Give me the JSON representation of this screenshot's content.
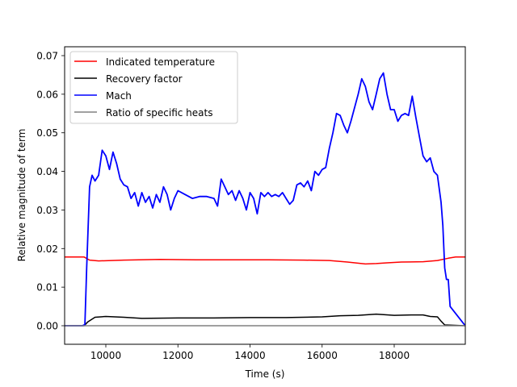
{
  "chart_data": {
    "type": "line",
    "title": "",
    "xlabel": "Time (s)",
    "ylabel": "Relative magnitude of term",
    "xlim": [
      8860,
      19970
    ],
    "ylim": [
      -0.0048,
      0.0723
    ],
    "grid": false,
    "legend_position": "upper left",
    "xticks": [
      10000,
      12000,
      14000,
      16000,
      18000
    ],
    "xtick_labels": [
      "10000",
      "12000",
      "14000",
      "16000",
      "18000"
    ],
    "yticks": [
      0.0,
      0.01,
      0.02,
      0.03,
      0.04,
      0.05,
      0.06,
      0.07
    ],
    "ytick_labels": [
      "0.00",
      "0.01",
      "0.02",
      "0.03",
      "0.04",
      "0.05",
      "0.06",
      "0.07"
    ],
    "series": [
      {
        "name": "Indicated temperature",
        "color": "#ff0000",
        "x": [
          8860,
          9400,
          9550,
          9800,
          10500,
          11500,
          12500,
          13500,
          14500,
          15500,
          16200,
          16700,
          17200,
          17500,
          17800,
          18200,
          18800,
          19200,
          19500,
          19700,
          19970
        ],
        "y": [
          0.0178,
          0.0178,
          0.017,
          0.0168,
          0.017,
          0.0172,
          0.0171,
          0.0171,
          0.0171,
          0.017,
          0.0169,
          0.0165,
          0.016,
          0.0161,
          0.0163,
          0.0165,
          0.0166,
          0.0169,
          0.0175,
          0.0178,
          0.0178
        ]
      },
      {
        "name": "Recovery factor",
        "color": "#000000",
        "x": [
          8860,
          9400,
          9500,
          9700,
          10000,
          10500,
          11000,
          12000,
          13000,
          14000,
          15000,
          16000,
          16500,
          17000,
          17500,
          18000,
          18500,
          18800,
          19000,
          19200,
          19300,
          19400,
          19970
        ],
        "y": [
          0.0,
          0.0,
          0.001,
          0.0022,
          0.0024,
          0.0022,
          0.0019,
          0.002,
          0.002,
          0.0021,
          0.0021,
          0.0023,
          0.0026,
          0.0027,
          0.003,
          0.0027,
          0.0028,
          0.0028,
          0.0024,
          0.0023,
          0.0012,
          0.0002,
          0.0
        ]
      },
      {
        "name": "Mach",
        "color": "#0000ff",
        "x": [
          8860,
          9350,
          9420,
          9470,
          9550,
          9620,
          9700,
          9800,
          9900,
          10000,
          10100,
          10200,
          10300,
          10400,
          10500,
          10600,
          10700,
          10800,
          10900,
          11000,
          11100,
          11200,
          11300,
          11400,
          11500,
          11600,
          11700,
          11800,
          11900,
          12000,
          12200,
          12400,
          12600,
          12800,
          13000,
          13100,
          13200,
          13300,
          13400,
          13500,
          13600,
          13700,
          13800,
          13900,
          14000,
          14100,
          14200,
          14300,
          14400,
          14500,
          14600,
          14700,
          14800,
          14900,
          15000,
          15100,
          15200,
          15300,
          15400,
          15500,
          15600,
          15700,
          15800,
          15900,
          16000,
          16100,
          16200,
          16300,
          16400,
          16500,
          16600,
          16700,
          16800,
          16900,
          17000,
          17100,
          17200,
          17300,
          17400,
          17500,
          17600,
          17700,
          17800,
          17900,
          18000,
          18100,
          18200,
          18300,
          18400,
          18500,
          18600,
          18700,
          18800,
          18900,
          19000,
          19100,
          19200,
          19300,
          19350,
          19400,
          19450,
          19500,
          19550,
          19970
        ],
        "y": [
          0.0,
          0.0,
          0.0003,
          0.015,
          0.036,
          0.039,
          0.0375,
          0.039,
          0.0455,
          0.044,
          0.0405,
          0.045,
          0.042,
          0.038,
          0.0365,
          0.036,
          0.033,
          0.0345,
          0.031,
          0.0345,
          0.032,
          0.0335,
          0.0305,
          0.034,
          0.032,
          0.036,
          0.034,
          0.03,
          0.033,
          0.035,
          0.034,
          0.033,
          0.0335,
          0.0335,
          0.033,
          0.031,
          0.038,
          0.036,
          0.034,
          0.035,
          0.0325,
          0.035,
          0.033,
          0.03,
          0.0345,
          0.033,
          0.029,
          0.0345,
          0.0335,
          0.0345,
          0.0335,
          0.034,
          0.0335,
          0.0345,
          0.033,
          0.0315,
          0.0325,
          0.0365,
          0.037,
          0.036,
          0.0375,
          0.035,
          0.04,
          0.039,
          0.0405,
          0.041,
          0.046,
          0.05,
          0.055,
          0.0545,
          0.052,
          0.05,
          0.053,
          0.0565,
          0.06,
          0.064,
          0.062,
          0.058,
          0.056,
          0.06,
          0.064,
          0.0655,
          0.06,
          0.056,
          0.056,
          0.053,
          0.0545,
          0.055,
          0.0545,
          0.0595,
          0.054,
          0.049,
          0.044,
          0.0425,
          0.0435,
          0.04,
          0.039,
          0.032,
          0.026,
          0.015,
          0.012,
          0.012,
          0.005,
          0.0
        ]
      },
      {
        "name": "Ratio of specific heats",
        "color": "#808080",
        "x": [
          8860,
          19970
        ],
        "y": [
          0.0,
          0.0
        ]
      }
    ]
  },
  "axes": {
    "xlabel": "Time (s)",
    "ylabel": "Relative magnitude of term"
  },
  "legend": {
    "items": [
      {
        "label": "Indicated temperature",
        "color": "#ff0000"
      },
      {
        "label": "Recovery factor",
        "color": "#000000"
      },
      {
        "label": "Mach",
        "color": "#0000ff"
      },
      {
        "label": "Ratio of specific heats",
        "color": "#808080"
      }
    ]
  }
}
